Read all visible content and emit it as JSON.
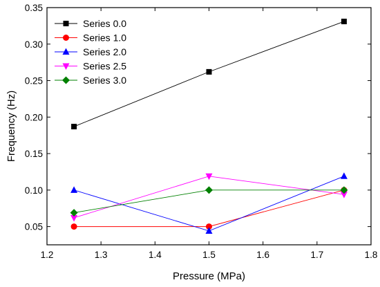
{
  "chart_data": {
    "type": "line",
    "xlabel": "Pressure (MPa)",
    "ylabel": "Frequency (Hz)",
    "xlim": [
      1.2,
      1.8
    ],
    "ylim": [
      0.025,
      0.35
    ],
    "xticks": [
      "1.2",
      "1.3",
      "1.4",
      "1.5",
      "1.6",
      "1.7",
      "1.8"
    ],
    "yticks": [
      "0.05",
      "0.10",
      "0.15",
      "0.20",
      "0.25",
      "0.30",
      "0.35"
    ],
    "grid": false,
    "legend_position": "top-left",
    "x": [
      1.25,
      1.5,
      1.75
    ],
    "series": [
      {
        "name": "Series 0.0",
        "values": [
          0.187,
          0.262,
          0.331
        ],
        "color": "#000000",
        "marker": "square"
      },
      {
        "name": "Series 1.0",
        "values": [
          0.05,
          0.05,
          0.1
        ],
        "color": "#ff0000",
        "marker": "circle"
      },
      {
        "name": "Series 2.0",
        "values": [
          0.1,
          0.044,
          0.119
        ],
        "color": "#0000ff",
        "marker": "triangle-up"
      },
      {
        "name": "Series 2.5",
        "values": [
          0.062,
          0.119,
          0.094
        ],
        "color": "#ff00ff",
        "marker": "triangle-down"
      },
      {
        "name": "Series 3.0",
        "values": [
          0.069,
          0.1,
          0.1
        ],
        "color": "#008000",
        "marker": "diamond"
      }
    ]
  }
}
